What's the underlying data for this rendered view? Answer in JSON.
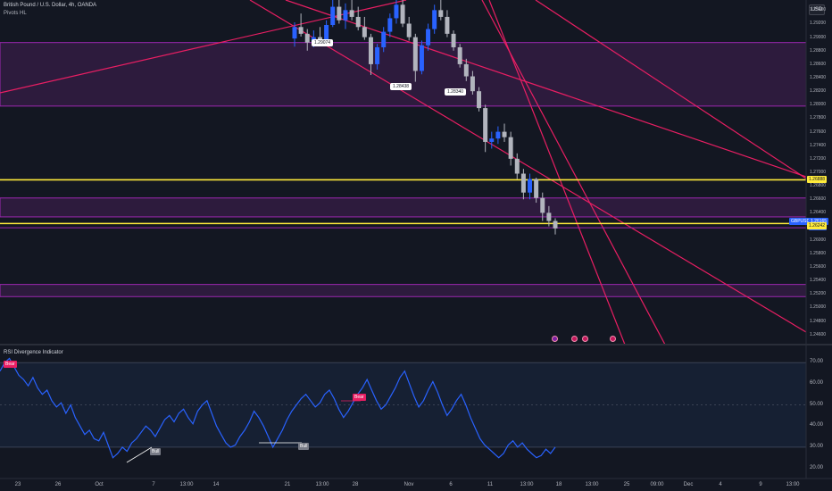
{
  "legend": {
    "title": "British Pound / U.S. Dollar, 4h, OANDA",
    "indicator": "Pivots HL"
  },
  "rsi_panel": {
    "title": "RSI Divergence Indicator"
  },
  "currency_button": "USD",
  "price_axis": {
    "labels": [
      "1.29400",
      "1.29200",
      "1.29000",
      "1.28800",
      "1.28600",
      "1.28400",
      "1.28200",
      "1.28000",
      "1.27800",
      "1.27600",
      "1.27400",
      "1.27200",
      "1.27000",
      "1.26800",
      "1.26600",
      "1.26400",
      "1.26200",
      "1.26000",
      "1.25800",
      "1.25600",
      "1.25400",
      "1.25200",
      "1.25000",
      "1.24800",
      "1.24600"
    ],
    "levels": [
      1.294,
      1.292,
      1.29,
      1.288,
      1.286,
      1.284,
      1.282,
      1.28,
      1.278,
      1.276,
      1.274,
      1.272,
      1.27,
      1.268,
      1.266,
      1.264,
      1.262,
      1.26,
      1.258,
      1.256,
      1.254,
      1.252,
      1.25,
      1.248,
      1.246
    ]
  },
  "rsi_axis": {
    "labels": [
      "70.00",
      "60.00",
      "50.00",
      "40.00",
      "30.00",
      "20.00"
    ],
    "levels": [
      70,
      60,
      50,
      40,
      30,
      20
    ]
  },
  "time_axis": {
    "labels": [
      "23",
      "26",
      "Oct",
      "7",
      "13:00",
      "14",
      "21",
      "13:00",
      "28",
      "Nov",
      "6",
      "11",
      "13:00",
      "18",
      "13:00",
      "25",
      "09:00",
      "Dec",
      "4",
      "9",
      "13:00"
    ]
  },
  "pivots": [
    {
      "text": "1.29074",
      "price": 1.29074
    },
    {
      "text": "1.28438",
      "price": 1.28438
    },
    {
      "text": "1.28340",
      "price": 1.2834
    }
  ],
  "price_tags": {
    "resistance": {
      "text": "1.26888",
      "price": 1.26888,
      "bg": "#ffeb3b",
      "fg": "#131722"
    },
    "symbol": {
      "text": "GBPUSD",
      "bg": "#2962ff",
      "fg": "#ffffff"
    },
    "last": {
      "text": "1.26165",
      "bg": "#2962ff",
      "fg": "#ffffff"
    },
    "countdown": {
      "text": "01:15:20",
      "bg": "#2962ff",
      "fg": "#ffffff"
    },
    "support": {
      "text": "1.26242",
      "price": 1.26242,
      "bg": "#ffeb3b",
      "fg": "#131722"
    }
  },
  "divergence_badges": [
    {
      "text": "Bear",
      "kind": "bear"
    },
    {
      "text": "Bear",
      "kind": "bear"
    },
    {
      "text": "Bull",
      "kind": "bull"
    },
    {
      "text": "Bull",
      "kind": "bull"
    }
  ],
  "events": [
    {
      "name": "event-icon-1"
    },
    {
      "name": "event-icon-2"
    },
    {
      "name": "event-icon-3"
    },
    {
      "name": "event-icon-4"
    }
  ],
  "colors": {
    "background": "#131722",
    "zone_fill": "#2d1b3d",
    "zone_border": "#9c27b0",
    "trendline": "#e91e63",
    "level_line": "#ffeb3b",
    "candle_up": "#2962ff",
    "candle_down": "#b2b5be",
    "rsi_line": "#2962ff",
    "rsi_band": "#162033",
    "bear_badge": "#e91e63",
    "bull_badge": "#787b86"
  },
  "chart_data": {
    "type": "candlestick",
    "symbol": "GBPUSD",
    "interval": "4h",
    "ylim": [
      1.2445,
      1.2955
    ],
    "zones": [
      {
        "from": 1.2798,
        "to": 1.2892
      },
      {
        "from": 1.2634,
        "to": 1.2662
      },
      {
        "from": 1.2516,
        "to": 1.2534
      }
    ],
    "levels": [
      1.26888,
      1.26242,
      1.2618
    ],
    "candles": [
      {
        "o": 1.2898,
        "h": 1.2922,
        "l": 1.2886,
        "c": 1.2915
      },
      {
        "o": 1.2915,
        "h": 1.2935,
        "l": 1.2901,
        "c": 1.2905
      },
      {
        "o": 1.2905,
        "h": 1.2912,
        "l": 1.288,
        "c": 1.2892
      },
      {
        "o": 1.2892,
        "h": 1.291,
        "l": 1.2885,
        "c": 1.29
      },
      {
        "o": 1.29,
        "h": 1.2915,
        "l": 1.289,
        "c": 1.2896
      },
      {
        "o": 1.2896,
        "h": 1.2925,
        "l": 1.2893,
        "c": 1.2918
      },
      {
        "o": 1.2918,
        "h": 1.2955,
        "l": 1.2915,
        "c": 1.2945
      },
      {
        "o": 1.2945,
        "h": 1.2955,
        "l": 1.292,
        "c": 1.2925
      },
      {
        "o": 1.2925,
        "h": 1.295,
        "l": 1.2912,
        "c": 1.294
      },
      {
        "o": 1.294,
        "h": 1.2955,
        "l": 1.2925,
        "c": 1.293
      },
      {
        "o": 1.293,
        "h": 1.2945,
        "l": 1.291,
        "c": 1.2915
      },
      {
        "o": 1.2915,
        "h": 1.293,
        "l": 1.2896,
        "c": 1.29
      },
      {
        "o": 1.29,
        "h": 1.2905,
        "l": 1.2844,
        "c": 1.286
      },
      {
        "o": 1.286,
        "h": 1.289,
        "l": 1.2852,
        "c": 1.2885
      },
      {
        "o": 1.2885,
        "h": 1.2915,
        "l": 1.2878,
        "c": 1.2908
      },
      {
        "o": 1.2908,
        "h": 1.2935,
        "l": 1.29,
        "c": 1.2928
      },
      {
        "o": 1.2928,
        "h": 1.2955,
        "l": 1.292,
        "c": 1.2948
      },
      {
        "o": 1.2948,
        "h": 1.2955,
        "l": 1.2915,
        "c": 1.292
      },
      {
        "o": 1.292,
        "h": 1.293,
        "l": 1.2895,
        "c": 1.29
      },
      {
        "o": 1.29,
        "h": 1.2905,
        "l": 1.2834,
        "c": 1.285
      },
      {
        "o": 1.285,
        "h": 1.2895,
        "l": 1.2845,
        "c": 1.2888
      },
      {
        "o": 1.2888,
        "h": 1.292,
        "l": 1.288,
        "c": 1.2912
      },
      {
        "o": 1.2912,
        "h": 1.2948,
        "l": 1.2905,
        "c": 1.294
      },
      {
        "o": 1.294,
        "h": 1.2955,
        "l": 1.2925,
        "c": 1.293
      },
      {
        "o": 1.293,
        "h": 1.294,
        "l": 1.29,
        "c": 1.2905
      },
      {
        "o": 1.2905,
        "h": 1.291,
        "l": 1.288,
        "c": 1.2885
      },
      {
        "o": 1.2885,
        "h": 1.289,
        "l": 1.2855,
        "c": 1.286
      },
      {
        "o": 1.286,
        "h": 1.2868,
        "l": 1.2835,
        "c": 1.2842
      },
      {
        "o": 1.2842,
        "h": 1.285,
        "l": 1.2815,
        "c": 1.282
      },
      {
        "o": 1.282,
        "h": 1.2826,
        "l": 1.279,
        "c": 1.2795
      },
      {
        "o": 1.2795,
        "h": 1.28,
        "l": 1.273,
        "c": 1.2745
      },
      {
        "o": 1.2745,
        "h": 1.276,
        "l": 1.2735,
        "c": 1.275
      },
      {
        "o": 1.275,
        "h": 1.2768,
        "l": 1.2742,
        "c": 1.276
      },
      {
        "o": 1.276,
        "h": 1.2772,
        "l": 1.2745,
        "c": 1.2752
      },
      {
        "o": 1.2752,
        "h": 1.276,
        "l": 1.271,
        "c": 1.272
      },
      {
        "o": 1.272,
        "h": 1.2728,
        "l": 1.269,
        "c": 1.2698
      },
      {
        "o": 1.2698,
        "h": 1.2705,
        "l": 1.266,
        "c": 1.267
      },
      {
        "o": 1.267,
        "h": 1.2698,
        "l": 1.266,
        "c": 1.269
      },
      {
        "o": 1.269,
        "h": 1.2692,
        "l": 1.2655,
        "c": 1.2662
      },
      {
        "o": 1.2662,
        "h": 1.267,
        "l": 1.2628,
        "c": 1.264
      },
      {
        "o": 1.264,
        "h": 1.265,
        "l": 1.262,
        "c": 1.2628
      },
      {
        "o": 1.2628,
        "h": 1.2632,
        "l": 1.2608,
        "c": 1.2617
      }
    ],
    "rsi": [
      66,
      70,
      72,
      68,
      64,
      62,
      59,
      63,
      58,
      55,
      57,
      52,
      49,
      51,
      46,
      50,
      44,
      40,
      36,
      38,
      34,
      33,
      37,
      31,
      25,
      27,
      30,
      28,
      32,
      34,
      37,
      40,
      38,
      35,
      39,
      43,
      45,
      42,
      46,
      48,
      44,
      41,
      47,
      50,
      52,
      46,
      40,
      36,
      32,
      30,
      31,
      35,
      38,
      42,
      47,
      44,
      40,
      35,
      30,
      34,
      38,
      43,
      47,
      50,
      53,
      55,
      52,
      49,
      51,
      55,
      57,
      53,
      48,
      44,
      47,
      51,
      55,
      58,
      62,
      57,
      52,
      48,
      50,
      54,
      58,
      63,
      66,
      60,
      54,
      49,
      52,
      57,
      61,
      56,
      50,
      45,
      48,
      52,
      55,
      50,
      44,
      39,
      34,
      31,
      29,
      27,
      25,
      27,
      31,
      33,
      30,
      32,
      29,
      27,
      25,
      26,
      29,
      27,
      30
    ],
    "rsi_ylim": [
      16,
      76
    ]
  }
}
